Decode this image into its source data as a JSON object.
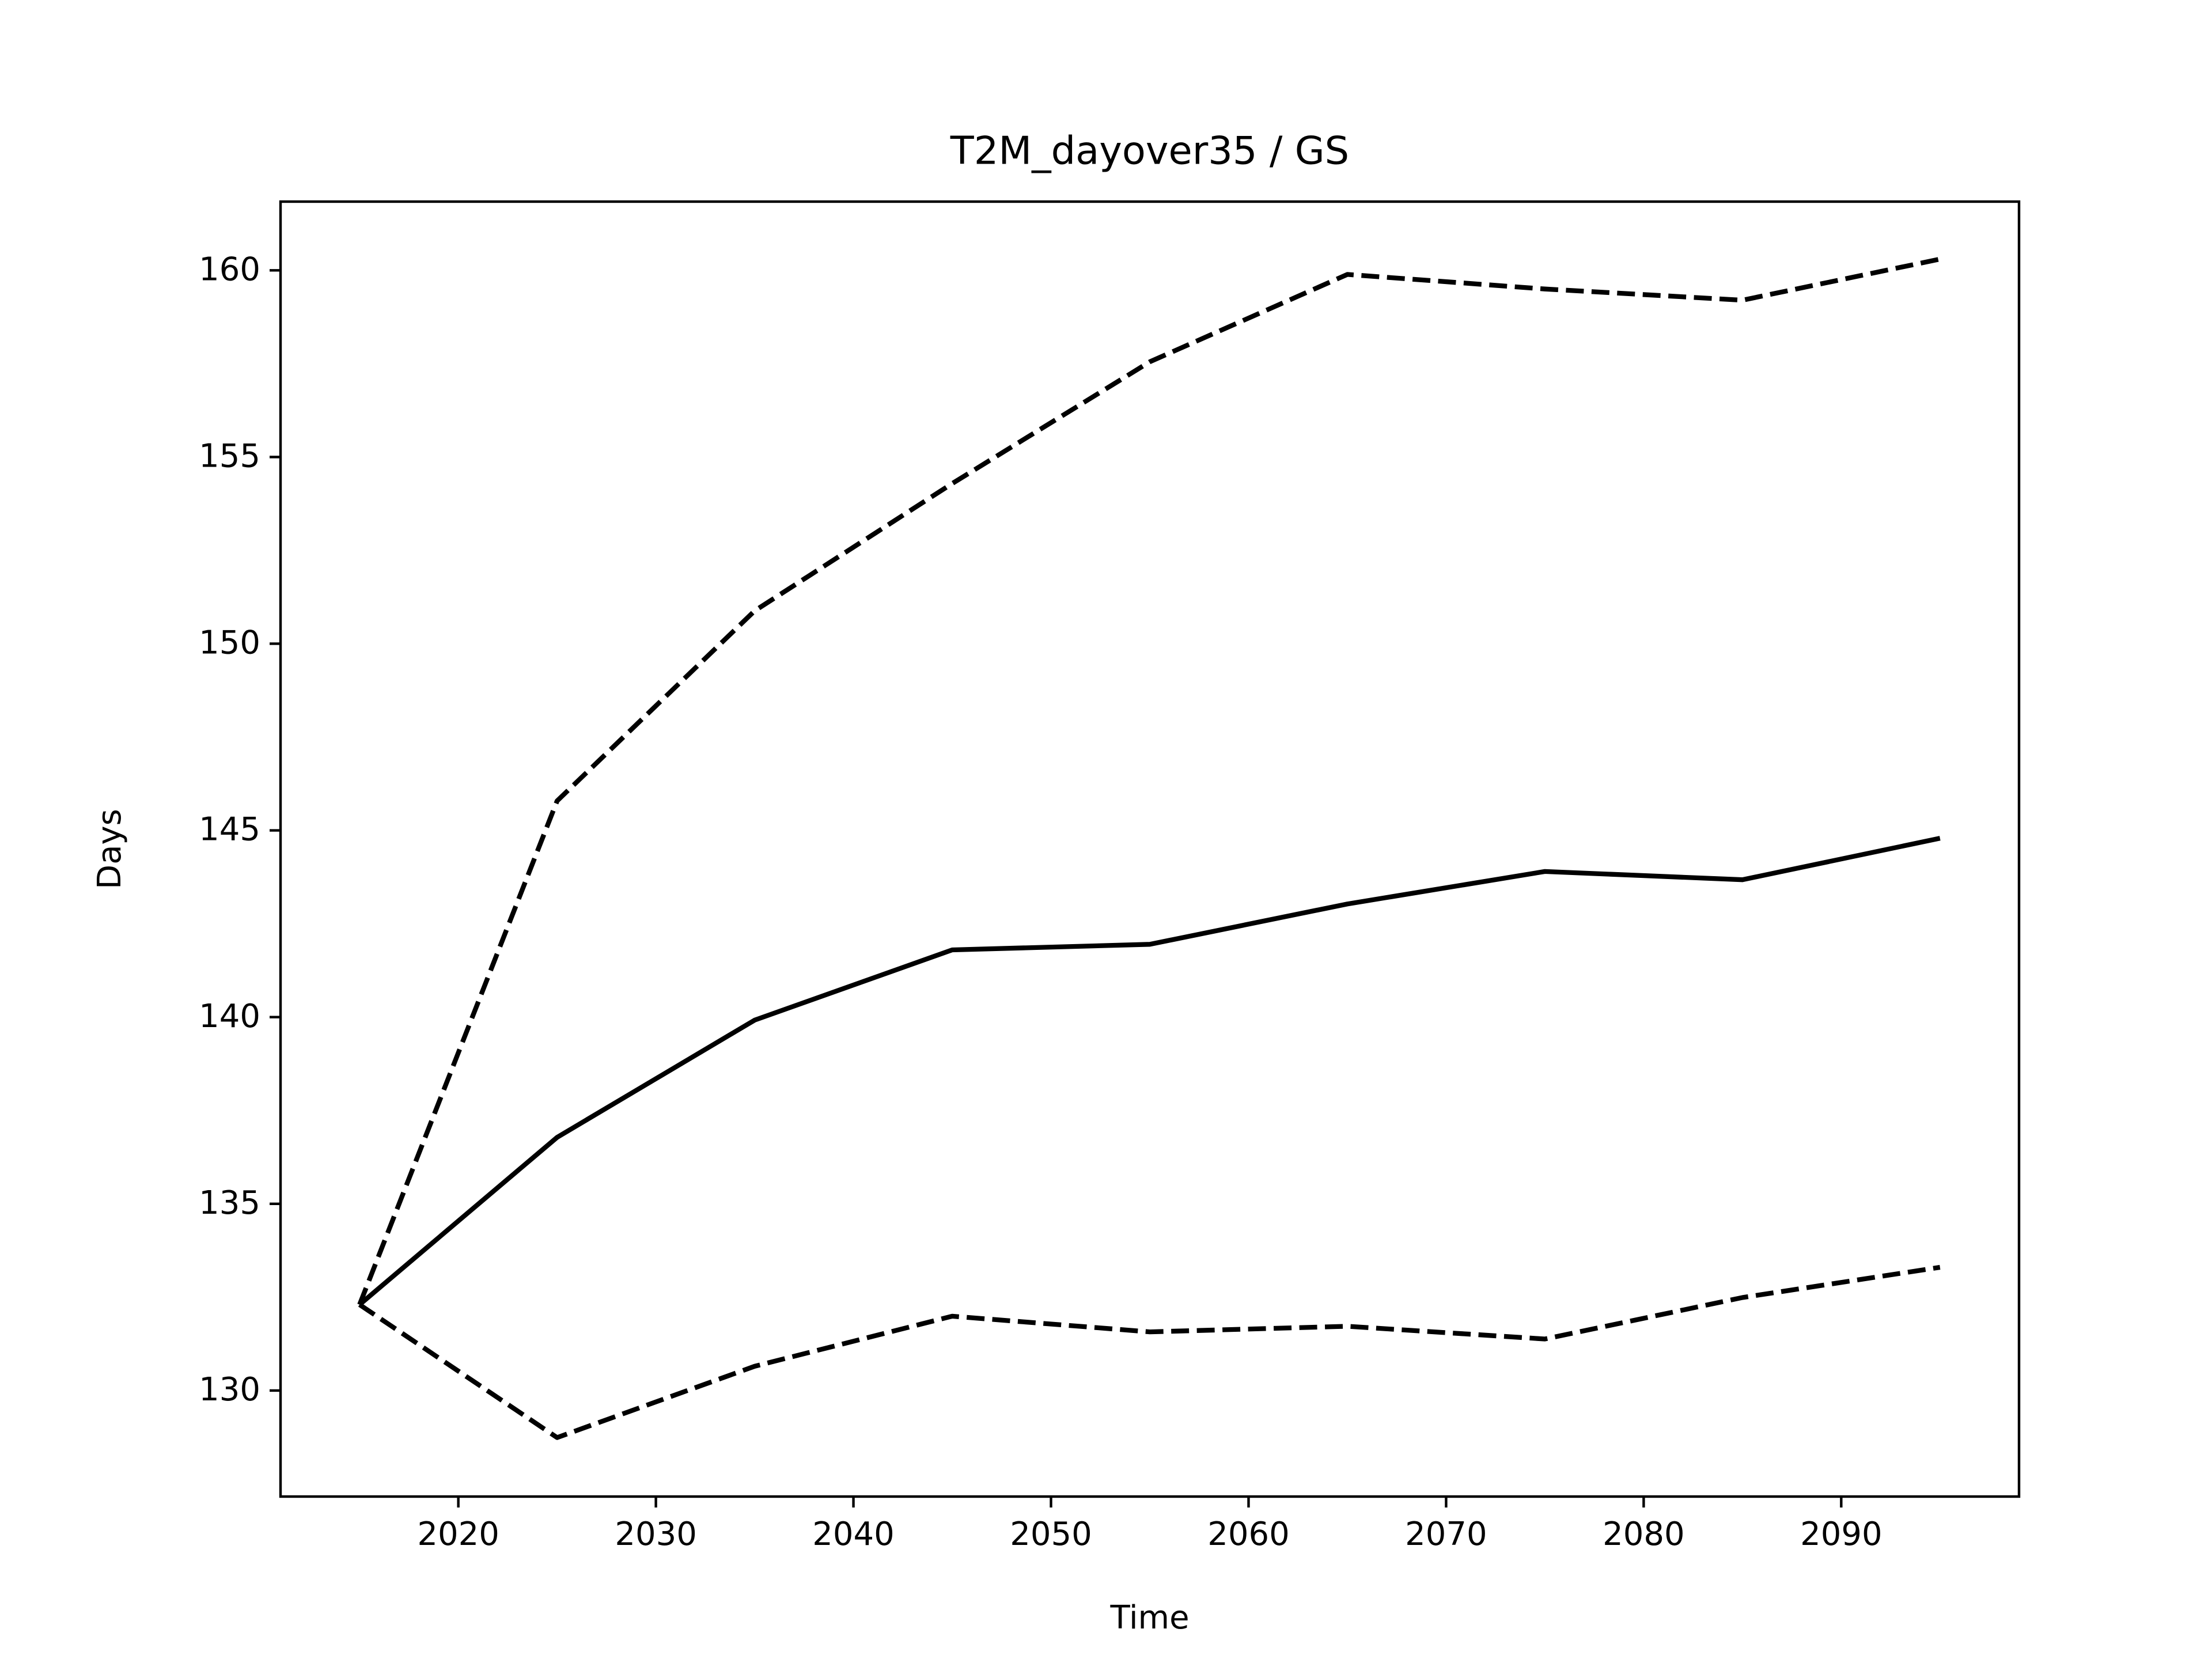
{
  "chart_data": {
    "type": "line",
    "title": "T2M_dayover35 / GS",
    "xlabel": "Time",
    "ylabel": "Days",
    "x": [
      2015,
      2025,
      2035,
      2045,
      2055,
      2065,
      2075,
      2085,
      2095
    ],
    "series": [
      {
        "color": "#000000",
        "linestyle": "solid",
        "values": [
          132.3,
          136.78,
          139.92,
          141.8,
          141.95,
          143.03,
          143.9,
          143.68,
          144.79
        ]
      },
      {
        "color": "#000000",
        "linestyle": "dashed",
        "values": [
          132.3,
          145.79,
          150.88,
          154.29,
          157.55,
          159.89,
          159.5,
          159.2,
          160.3
        ]
      },
      {
        "color": "#000000",
        "linestyle": "dashed",
        "values": [
          132.3,
          128.74,
          130.65,
          131.99,
          131.57,
          131.72,
          131.38,
          132.49,
          133.3
        ]
      }
    ],
    "xlim": [
      2011,
      2099
    ],
    "ylim": [
      127.16,
      161.84
    ],
    "xticks": [
      2020,
      2030,
      2040,
      2050,
      2060,
      2070,
      2080,
      2090
    ],
    "yticks": [
      130,
      135,
      140,
      145,
      150,
      155,
      160
    ],
    "grid": false
  }
}
